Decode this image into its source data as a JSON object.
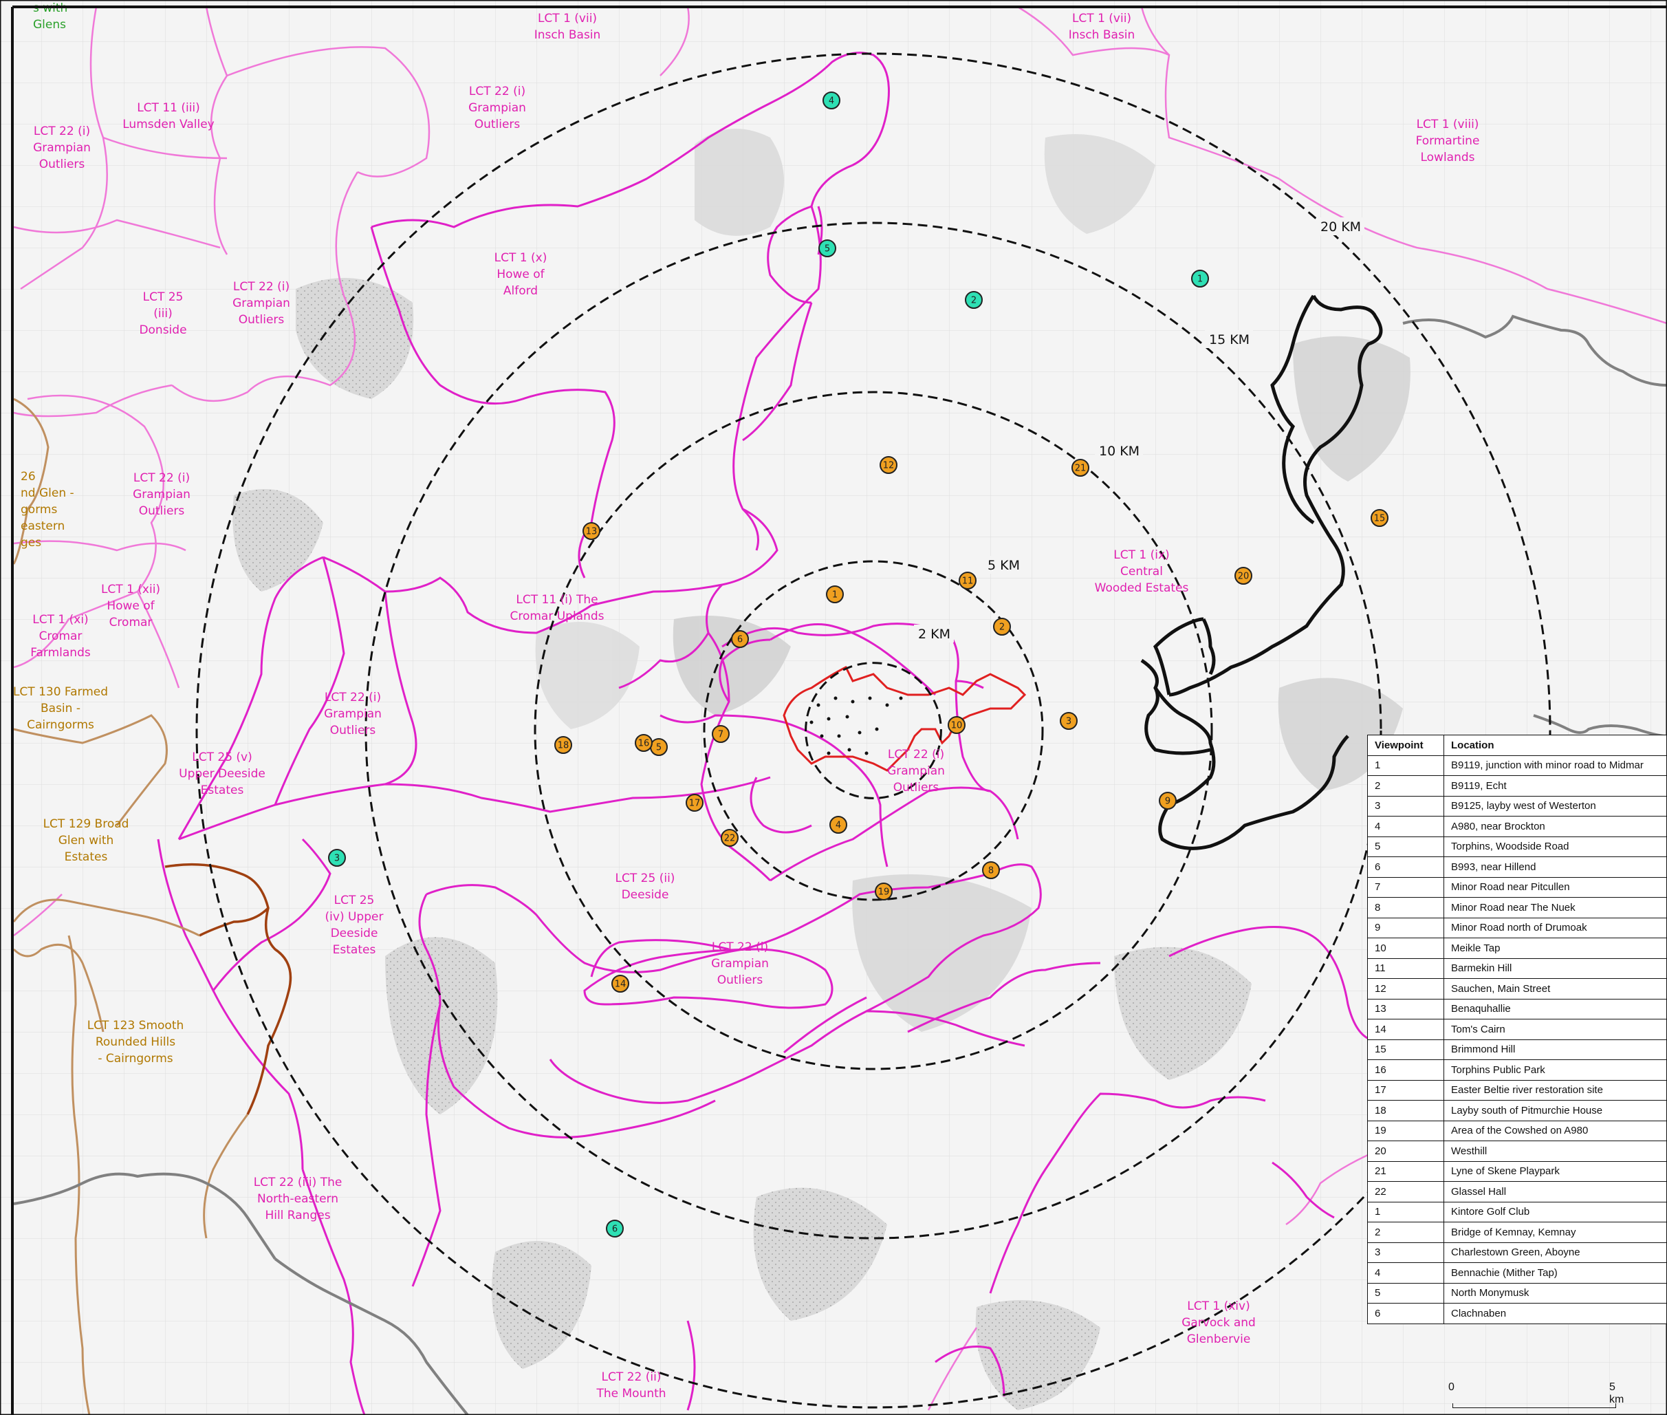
{
  "lct_labels": [
    {
      "id": "lct-insch-basin-west",
      "lines": [
        "LCT 1 (vii)",
        "Insch Basin"
      ],
      "color": "pink"
    },
    {
      "id": "lct-insch-basin-east",
      "lines": [
        "LCT 1 (vii)",
        "Insch Basin"
      ],
      "color": "pink"
    },
    {
      "id": "lct-grampian-outliers-north",
      "lines": [
        "LCT 22 (i)",
        "Grampian",
        "Outliers"
      ],
      "color": "pink"
    },
    {
      "id": "lct-lumsden-valley",
      "lines": [
        "LCT 11 (iii)",
        "Lumsden Valley"
      ],
      "color": "pink"
    },
    {
      "id": "lct-grampian-outliers-nw",
      "lines": [
        "LCT 22 (i)",
        "Grampian",
        "Outliers"
      ],
      "color": "pink"
    },
    {
      "id": "lct-formartine-lowlands",
      "lines": [
        "LCT 1 (viii)",
        "Formartine",
        "Lowlands"
      ],
      "color": "pink"
    },
    {
      "id": "lct-howe-of-alford",
      "lines": [
        "LCT 1 (x)",
        "Howe of",
        "Alford"
      ],
      "color": "pink"
    },
    {
      "id": "lct-grampian-outliers-west",
      "lines": [
        "LCT 22 (i)",
        "Grampian",
        "Outliers"
      ],
      "color": "pink"
    },
    {
      "id": "lct-donside",
      "lines": [
        "LCT 25",
        "(iii)",
        "Donside"
      ],
      "color": "pink"
    },
    {
      "id": "lct-grampian-outliers-west2",
      "lines": [
        "LCT 22 (i)",
        "Grampian",
        "Outliers"
      ],
      "color": "pink"
    },
    {
      "id": "lct-central-wooded-estates",
      "lines": [
        "LCT 1 (ix)",
        "Central",
        "Wooded Estates"
      ],
      "color": "pink"
    },
    {
      "id": "lct-cromar-uplands",
      "lines": [
        "LCT 11 (i) The",
        "Cromar Uplands"
      ],
      "color": "pink"
    },
    {
      "id": "lct-howe-of-cromar",
      "lines": [
        "LCT 1 (xii)",
        "Howe of",
        "Cromar"
      ],
      "color": "pink"
    },
    {
      "id": "lct-cromar-farmlands",
      "lines": [
        "LCT 1 (xi)",
        "Cromar",
        "Farmlands"
      ],
      "color": "pink"
    },
    {
      "id": "lct-grampian-outliers-sw",
      "lines": [
        "LCT 22 (i)",
        "Grampian",
        "Outliers"
      ],
      "color": "pink"
    },
    {
      "id": "lct-grampian-outliers-centre",
      "lines": [
        "LCT 22 (i)",
        "Grampian",
        "Outliers"
      ],
      "color": "pink"
    },
    {
      "id": "lct-upper-deeside-estates-v",
      "lines": [
        "LCT 25 (v)",
        "Upper Deeside",
        "Estates"
      ],
      "color": "pink"
    },
    {
      "id": "lct-deeside",
      "lines": [
        "LCT 25 (ii)",
        "Deeside"
      ],
      "color": "pink"
    },
    {
      "id": "lct-upper-deeside-estates-iv",
      "lines": [
        "LCT 25",
        "(iv) Upper",
        "Deeside",
        "Estates"
      ],
      "color": "pink"
    },
    {
      "id": "lct-grampian-outliers-south",
      "lines": [
        "LCT 22 (i)",
        "Grampian",
        "Outliers"
      ],
      "color": "pink"
    },
    {
      "id": "lct-north-eastern-hill-ranges",
      "lines": [
        "LCT 22 (iii) The",
        "North-eastern",
        "Hill Ranges"
      ],
      "color": "pink"
    },
    {
      "id": "lct-garvock-glenbervie",
      "lines": [
        "LCT 1 (xiv)",
        "Garvock and",
        "Glenbervie"
      ],
      "color": "pink"
    },
    {
      "id": "lct-the-mounth",
      "lines": [
        "LCT 22 (ii)",
        "The Mounth"
      ],
      "color": "pink"
    },
    {
      "id": "lct-farmed-basin-cairngorms",
      "lines": [
        "LCT 130 Farmed",
        "Basin -",
        "Cairngorms"
      ],
      "color": "brown"
    },
    {
      "id": "lct-broad-glen-estates",
      "lines": [
        "LCT 129 Broad",
        "Glen with",
        "Estates"
      ],
      "color": "brown"
    },
    {
      "id": "lct-smooth-rounded-hills",
      "lines": [
        "LCT 123 Smooth",
        "Rounded Hills",
        "- Cairngorms"
      ],
      "color": "brown"
    },
    {
      "id": "lct-fragment-26",
      "lines": [
        "26",
        "nd Glen -",
        "gorms",
        "eastern",
        "ges"
      ],
      "color": "brown"
    },
    {
      "id": "lct-fragment-glens",
      "lines": [
        "s with",
        "Glens"
      ],
      "color": "green"
    }
  ],
  "rings": [
    {
      "radius_km": 2,
      "label": "2 KM"
    },
    {
      "radius_km": 5,
      "label": "5 KM"
    },
    {
      "radius_km": 10,
      "label": "10 KM"
    },
    {
      "radius_km": 15,
      "label": "15 KM"
    },
    {
      "radius_km": 20,
      "label": "20 KM"
    }
  ],
  "orange_viewpoints": [
    "1",
    "2",
    "3",
    "4",
    "5",
    "6",
    "7",
    "8",
    "9",
    "10",
    "11",
    "12",
    "13",
    "14",
    "15",
    "16",
    "17",
    "18",
    "19",
    "20",
    "21",
    "22"
  ],
  "teal_viewpoints": [
    "1",
    "2",
    "3",
    "4",
    "5",
    "6"
  ],
  "colors": {
    "orange_marker": "#f0a020",
    "teal_marker": "#2ee0b4",
    "lct_boundary_major": "#e020c8",
    "lct_boundary_minor": "#f078d8",
    "site_boundary": "#e02020",
    "rings": "#111111",
    "authority_boundary": "#111111",
    "national_park_boundary": "#a04010"
  },
  "table": {
    "headers": [
      "Viewpoint",
      "Location"
    ],
    "rows": [
      [
        "1",
        "B9119, junction with minor road to Midmar"
      ],
      [
        "2",
        "B9119, Echt"
      ],
      [
        "3",
        "B9125, layby west of Westerton"
      ],
      [
        "4",
        "A980, near Brockton"
      ],
      [
        "5",
        "Torphins, Woodside Road"
      ],
      [
        "6",
        "B993, near Hillend"
      ],
      [
        "7",
        "Minor Road near Pitcullen"
      ],
      [
        "8",
        "Minor Road near The Nuek"
      ],
      [
        "9",
        "Minor Road north of Drumoak"
      ],
      [
        "10",
        "Meikle Tap"
      ],
      [
        "11",
        "Barmekin Hill"
      ],
      [
        "12",
        "Sauchen, Main Street"
      ],
      [
        "13",
        "Benaquhallie"
      ],
      [
        "14",
        "Tom's Cairn"
      ],
      [
        "15",
        "Brimmond Hill"
      ],
      [
        "16",
        "Torphins Public Park"
      ],
      [
        "17",
        "Easter Beltie river restoration site"
      ],
      [
        "18",
        "Layby south of Pitmurchie House"
      ],
      [
        "19",
        "Area of the Cowshed on A980"
      ],
      [
        "20",
        "Westhill"
      ],
      [
        "21",
        "Lyne of Skene Playpark"
      ],
      [
        "22",
        "Glassel Hall"
      ],
      [
        "1",
        "Kintore Golf Club"
      ],
      [
        "2",
        "Bridge of Kemnay, Kemnay"
      ],
      [
        "3",
        "Charlestown Green, Aboyne"
      ],
      [
        "4",
        "Bennachie (Mither Tap)"
      ],
      [
        "5",
        "North Monymusk"
      ],
      [
        "6",
        "Clachnaben"
      ]
    ]
  },
  "scale_bar": {
    "start": "0",
    "end": "5 km"
  }
}
